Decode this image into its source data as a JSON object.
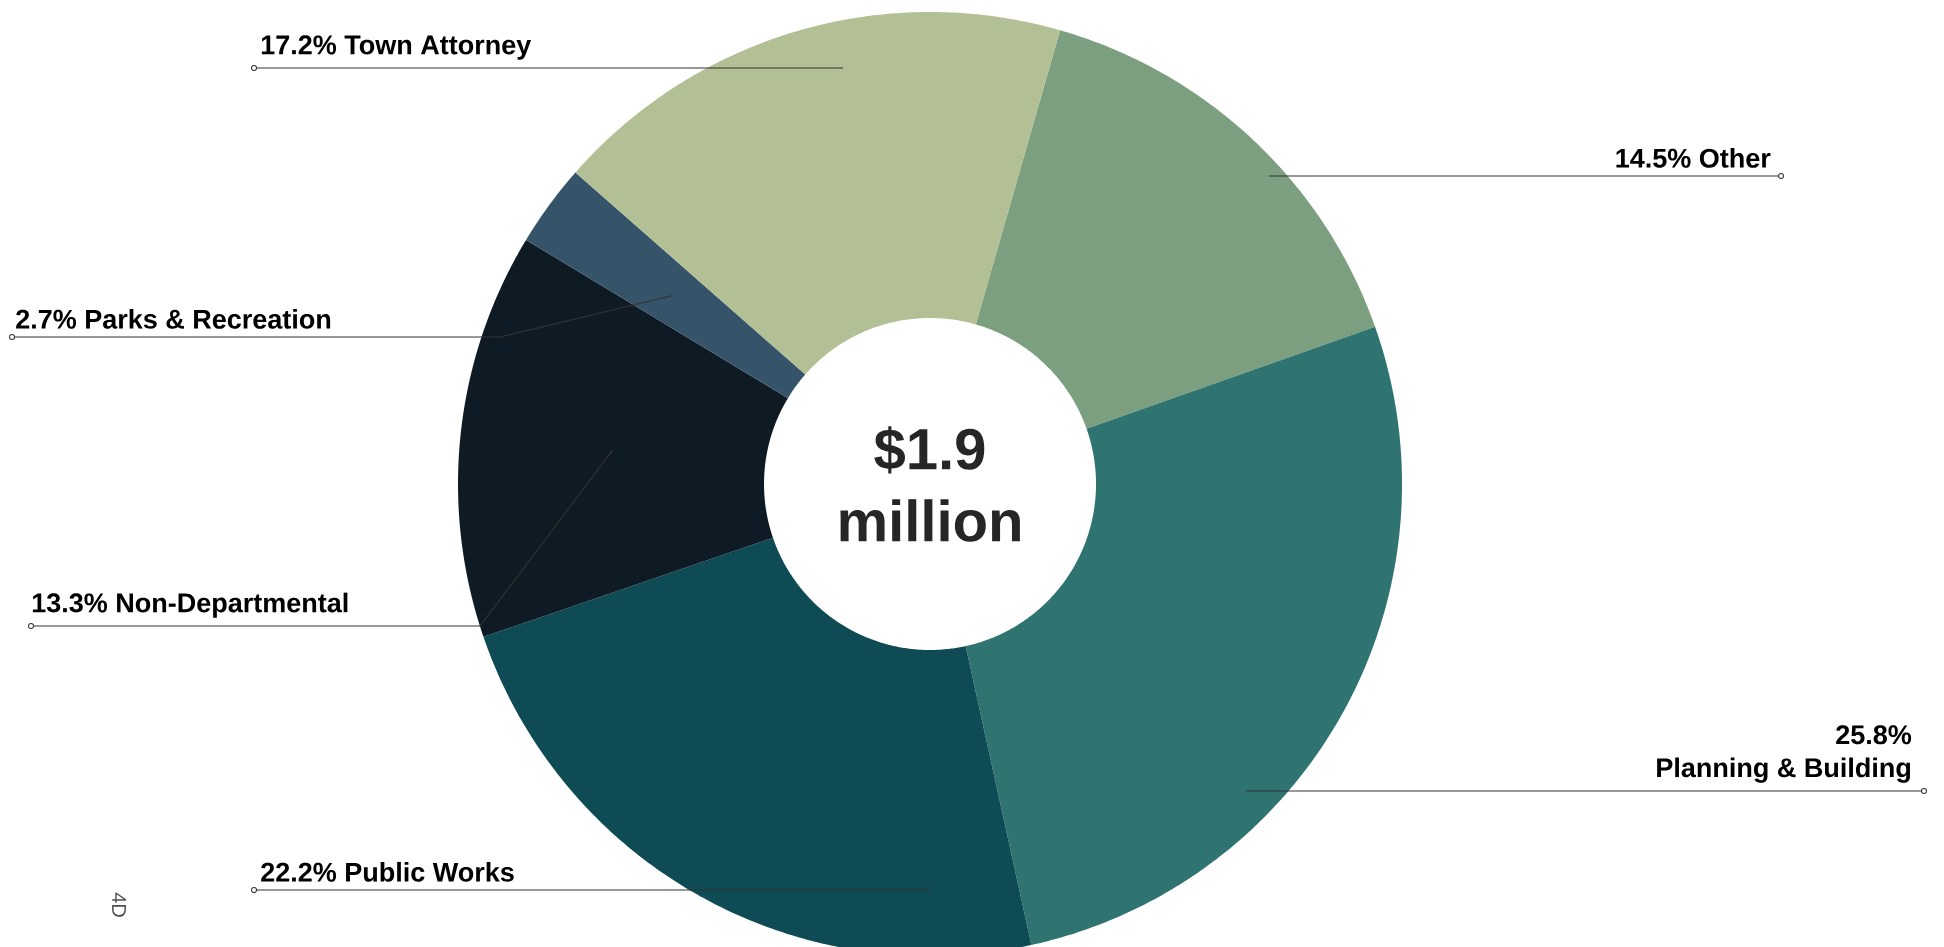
{
  "chart_data": {
    "type": "donut",
    "categories": [
      "Other",
      "Planning & Building",
      "Public Works",
      "Non-Departmental",
      "Parks & Recreation",
      "Town Attorney"
    ],
    "values": [
      14.5,
      25.8,
      22.2,
      13.3,
      2.7,
      17.2
    ],
    "value_labels": [
      "14.5%",
      "25.8%",
      "22.2%",
      "13.3%",
      "2.7%",
      "17.2%"
    ],
    "colors": [
      "#7b9f7f",
      "#2f7471",
      "#0f4b55",
      "#0e1a24",
      "#35546a",
      "#b3bf95"
    ],
    "annotations": [
      "$1.9 million",
      "4D"
    ]
  }
}
